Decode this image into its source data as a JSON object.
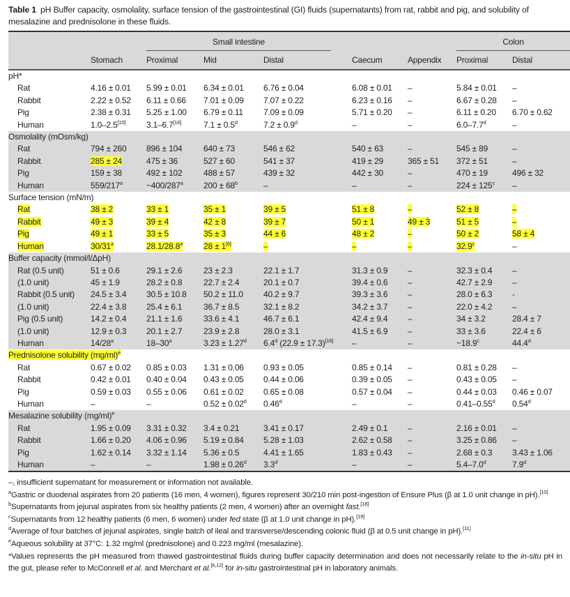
{
  "caption": {
    "label": "Table 1",
    "text": "pH Buffer capacity, osmolality, surface tension of the gastrointestinal (GI) fluids (supernatants) from rat, rabbit and pig, and solubility of mesalazine and prednisolone in these fluids."
  },
  "colors": {
    "highlight": "#ffff33",
    "shade": "#d9d9d9"
  },
  "header": {
    "groups": {
      "small_intestine": "Small intestine",
      "colon": "Colon"
    },
    "columns": [
      "Stomach",
      "Proximal",
      "Mid",
      "Distal",
      "Caecum",
      "Appendix",
      "Proximal",
      "Distal"
    ]
  },
  "sections": [
    {
      "title": "pH*",
      "shaded": false,
      "rows": [
        {
          "label": "Rat",
          "cells": [
            "4.16 ± 0.01",
            "5.99 ± 0.01",
            "6.34 ± 0.01",
            "6.76 ± 0.04",
            "6.08 ± 0.01",
            "–",
            "5.84 ± 0.01",
            "–"
          ]
        },
        {
          "label": "Rabbit",
          "cells": [
            "2.22 ± 0.52",
            "6.11 ± 0.66",
            "7.01 ± 0.09",
            "7.07 ± 0.22",
            "6.23 ± 0.16",
            "–",
            "6.67 ± 0.28",
            "–"
          ]
        },
        {
          "label": "Pig",
          "cells": [
            "2.38 ± 0.31",
            "5.25 ± 1.00",
            "6.79 ± 0.11",
            "7.09 ± 0.09",
            "5.71 ± 0.20",
            "–",
            "6.11 ± 0.20",
            "6.70 ± 0.62"
          ]
        },
        {
          "label": "Human",
          "cells": [
            {
              "v": "1.0–2.5",
              "sup": "[15]"
            },
            {
              "v": "3.1–6.7",
              "sup": "[16]"
            },
            {
              "v": "7.1 ± 0.5",
              "sup": "d"
            },
            {
              "v": "7.2 ± 0.9",
              "sup": "d"
            },
            "–",
            "–",
            {
              "v": "6.0–7.7",
              "sup": "d"
            },
            "–"
          ]
        }
      ]
    },
    {
      "title": "Osmolality (mOsm/kg)",
      "shaded": true,
      "rows": [
        {
          "label": "Rat",
          "cells": [
            "794 ± 260",
            "896 ± 104",
            "640 ± 73",
            "546 ± 62",
            "540 ± 63",
            "–",
            "545 ± 89",
            "–"
          ]
        },
        {
          "label": "Rabbit",
          "cells": [
            {
              "v": "285 ± 24",
              "hl": true
            },
            "475 ± 36",
            "527 ± 60",
            "541 ± 37",
            "419 ± 29",
            "365 ± 51",
            "372 ± 51",
            "–"
          ]
        },
        {
          "label": "Pig",
          "cells": [
            "159 ± 38",
            "492 ± 102",
            "488 ± 57",
            "439 ± 32",
            "442 ± 30",
            "–",
            "470 ± 19",
            "496 ± 32"
          ]
        },
        {
          "label": "Human",
          "cells": [
            {
              "v": "559/217",
              "sup": "a"
            },
            {
              "v": "~400/287",
              "sup": "a"
            },
            {
              "v": "200 ± 68",
              "sup": "b"
            },
            "–",
            "–",
            "–",
            {
              "v": "224 ± 125",
              "sup": "c"
            },
            "–"
          ]
        }
      ]
    },
    {
      "title": "Surface tension (mN/m)",
      "shaded": false,
      "rows": [
        {
          "label": "Rat",
          "label_hl": true,
          "cells": [
            {
              "v": "38 ± 2",
              "hl": true
            },
            {
              "v": "33 ± 1",
              "hl": true
            },
            {
              "v": "35 ± 1",
              "hl": true
            },
            {
              "v": "39 ± 5",
              "hl": true
            },
            {
              "v": "51 ± 8",
              "hl": true
            },
            {
              "v": "–",
              "hl": true
            },
            {
              "v": "52 ± 8",
              "hl": true
            },
            {
              "v": "–",
              "hl": true
            }
          ]
        },
        {
          "label": "Rabbit",
          "label_hl": true,
          "cells": [
            {
              "v": "49 ± 3",
              "hl": true
            },
            {
              "v": "39 ± 4",
              "hl": true
            },
            {
              "v": "42 ± 8",
              "hl": true
            },
            {
              "v": "39 ± 7",
              "hl": true
            },
            {
              "v": "50 ± 1",
              "hl": true
            },
            {
              "v": "49 ± 3",
              "hl": true
            },
            {
              "v": "51 ± 5",
              "hl": true
            },
            {
              "v": "–",
              "hl": true
            }
          ]
        },
        {
          "label": "Pig",
          "label_hl": true,
          "cells": [
            {
              "v": "49 ± 1",
              "hl": true
            },
            {
              "v": "33 ± 5",
              "hl": true
            },
            {
              "v": "35 ± 3",
              "hl": true
            },
            {
              "v": "44 ± 6",
              "hl": true
            },
            {
              "v": "48 ± 2",
              "hl": true
            },
            {
              "v": "–",
              "hl": true
            },
            {
              "v": "50 ± 2",
              "hl": true
            },
            {
              "v": "58 ± 4",
              "hl": true
            }
          ]
        },
        {
          "label": "Human",
          "label_hl": true,
          "cells": [
            {
              "v": "30/31",
              "sup": "a",
              "hl": true
            },
            {
              "v": "28.1/28.8",
              "sup": "a",
              "hl": true
            },
            {
              "v": "28 ± 1",
              "sup": "[6]",
              "hl": true
            },
            {
              "v": "–",
              "hl": true
            },
            {
              "v": "–",
              "hl": true
            },
            {
              "v": "–",
              "hl": true
            },
            {
              "v": "32.9",
              "sup": "c",
              "hl": true
            },
            "–"
          ]
        }
      ]
    },
    {
      "title": "Buffer capacity (mmol/l/ΔpH)",
      "shaded": true,
      "rows": [
        {
          "label": "Rat (0.5 unit)",
          "cells": [
            "51 ± 0.6",
            "29.1 ± 2.6",
            "23 ± 2.3",
            "22.1 ± 1.7",
            "31.3 ± 0.9",
            "–",
            "32.3 ± 0.4",
            "–"
          ]
        },
        {
          "label": "(1.0 unit)",
          "cells": [
            "45 ± 1.9",
            "28.2 ± 0.8",
            "22.7 ± 2.4",
            "20.1 ± 0.7",
            "39.4 ± 0.6",
            "–",
            "42.7 ± 2.9",
            "–"
          ]
        },
        {
          "label": "Rabbit (0.5 unit)",
          "cells": [
            "24.5 ± 3.4",
            "30.5 ± 10.8",
            "50.2 ± 11.0",
            "40.2 ± 9.7",
            "39.3 ± 3.6",
            "–",
            "28.0 ± 6.3",
            "-"
          ]
        },
        {
          "label": "(1.0 unit)",
          "cells": [
            "22.4 ± 3.8",
            "25.4 ± 6.1",
            "36.7 ± 8.5",
            "32.1 ± 8.2",
            "34.2 ± 3.7",
            "–",
            "22.0 ± 4.2",
            "–"
          ]
        },
        {
          "label": "Pig (0.5 unit)",
          "cells": [
            "14.2 ± 0.4",
            "21.1 ± 1.6",
            "33.6 ± 4.1",
            "46.7 ± 6.1",
            "42.4 ± 9.4",
            "–",
            "34 ± 3.2",
            "28.4 ± 7"
          ]
        },
        {
          "label": "(1.0 unit)",
          "cells": [
            "12.9 ± 0.3",
            "20.1 ± 2.7",
            "23.9 ± 2.8",
            "28.0 ± 3.1",
            "41.5 ± 6.9",
            "–",
            "33 ± 3.6",
            "22.4 ± 6"
          ]
        },
        {
          "label": "Human",
          "cells": [
            {
              "v": "14/28",
              "sup": "a"
            },
            {
              "v": "18–30",
              "sup": "a"
            },
            {
              "v": "3.23 ± 1.27",
              "sup": "d"
            },
            {
              "v": "6.4",
              "sup": "d",
              "tail": " (22.9 ± 17.3)",
              "tailsup": "[16]"
            },
            "–",
            "–",
            {
              "v": "~18.9",
              "sup": "c"
            },
            {
              "v": "44.4",
              "sup": "d"
            }
          ]
        }
      ]
    },
    {
      "title": "Prednisolone solubility (mg/ml)",
      "title_sup": "e",
      "title_hl": true,
      "shaded": false,
      "rows": [
        {
          "label": "Rat",
          "cells": [
            "0.67 ± 0.02",
            "0.85 ± 0.03",
            "1.31 ± 0.06",
            "0.93 ± 0.05",
            "0.85 ± 0.14",
            "–",
            "0.81 ± 0.28",
            "–"
          ]
        },
        {
          "label": "Rabbit",
          "cells": [
            "0.42 ± 0.01",
            "0.40 ± 0.04",
            "0.43 ± 0.05",
            "0.44 ± 0.06",
            "0.39 ± 0.05",
            "–",
            "0.43 ± 0.05",
            "–"
          ]
        },
        {
          "label": "Pig",
          "cells": [
            "0.59 ± 0.03",
            "0.55 ± 0.06",
            "0.61 ± 0.02",
            "0.65 ± 0.08",
            "0.57 ± 0.04",
            "–",
            "0.44 ± 0.03",
            "0.46 ± 0.07"
          ]
        },
        {
          "label": "Human",
          "cells": [
            "–",
            "–",
            {
              "v": "0.52 ± 0.02",
              "sup": "d"
            },
            {
              "v": "0.46",
              "sup": "d"
            },
            "–",
            "–",
            {
              "v": "0.41–0.55",
              "sup": "d"
            },
            {
              "v": "0.54",
              "sup": "d"
            }
          ]
        }
      ]
    },
    {
      "title": "Mesalazine solubility (mg/ml)",
      "title_sup": "e",
      "shaded": true,
      "rows": [
        {
          "label": "Rat",
          "cells": [
            "1.95 ± 0.09",
            "3.31 ± 0.32",
            "3.4 ± 0.21",
            "3.41 ± 0.17",
            "2.49 ± 0.1",
            "–",
            "2.16 ± 0.01",
            "–"
          ]
        },
        {
          "label": "Rabbit",
          "cells": [
            "1.66 ± 0.20",
            "4.06 ± 0.96",
            "5.19 ± 0.84",
            "5.28 ± 1.03",
            "2.62 ± 0.58",
            "–",
            "3.25 ± 0.86",
            "–"
          ]
        },
        {
          "label": "Pig",
          "cells": [
            "1.62 ± 0.14",
            "3.32 ± 1.14",
            "5.36 ± 0.5",
            "4.41 ± 1.65",
            "1.83 ± 0.43",
            "–",
            "2.68 ± 0.3",
            "3.43 ± 1.06"
          ]
        },
        {
          "label": "Human",
          "cells": [
            "–",
            "–",
            {
              "v": "1.98 ± 0.26",
              "sup": "d"
            },
            {
              "v": "3.3",
              "sup": "d"
            },
            "–",
            "–",
            {
              "v": "5.4–7.0",
              "sup": "d"
            },
            {
              "v": "7.9",
              "sup": "d"
            }
          ]
        }
      ]
    }
  ],
  "footnotes": [
    [
      {
        "t": "–, insufficient supernatant for measurement or information not available."
      }
    ],
    [
      {
        "t": "a",
        "s": "sup"
      },
      {
        "t": "Gastric or duodenal aspirates from 20 patients (16 men, 4 women), figures represent 30/210 min post-ingestion of Ensure Plus (β at 1.0 unit change in pH)."
      },
      {
        "t": "[10]",
        "s": "sup"
      }
    ],
    [
      {
        "t": "b",
        "s": "sup"
      },
      {
        "t": "Supernatants from jejunal aspirates from six healthy patients (2 men, 4 women) after an overnight "
      },
      {
        "t": "fast.",
        "s": "i"
      },
      {
        "t": "[18]",
        "s": "sup"
      }
    ],
    [
      {
        "t": "c",
        "s": "sup"
      },
      {
        "t": "Supernatants from 12 healthy patients (6 men, 6 women) under "
      },
      {
        "t": "fed",
        "s": "i"
      },
      {
        "t": " state (β at 1.0 unit change in pH)."
      },
      {
        "t": "[19]",
        "s": "sup"
      }
    ],
    [
      {
        "t": "d",
        "s": "sup"
      },
      {
        "t": "Average of four batches of jejunal aspirates, single batch of ileal and transverse/descending colonic fluid (β at 0.5 unit change in pH)."
      },
      {
        "t": "[11]",
        "s": "sup"
      }
    ],
    [
      {
        "t": "e",
        "s": "sup"
      },
      {
        "t": "Aqueous solubility at 37°C: 1.32 mg/ml (prednisolone) and 0.223 mg/ml (mesalazine)."
      }
    ],
    [
      {
        "t": "*Values represents the pH measured from thawed gastrointestinal fluids during buffer capacity determination and does not necessarily relate to the "
      },
      {
        "t": "in-situ",
        "s": "i"
      },
      {
        "t": " pH in the gut, please refer to McConnell "
      },
      {
        "t": "et al",
        "s": "i"
      },
      {
        "t": ". and Merchant "
      },
      {
        "t": "et al.",
        "s": "i"
      },
      {
        "t": "[6,12]",
        "s": "sup"
      },
      {
        "t": " for "
      },
      {
        "t": "in-situ",
        "s": "i"
      },
      {
        "t": " gastrointestinal pH in laboratory animals."
      }
    ]
  ]
}
